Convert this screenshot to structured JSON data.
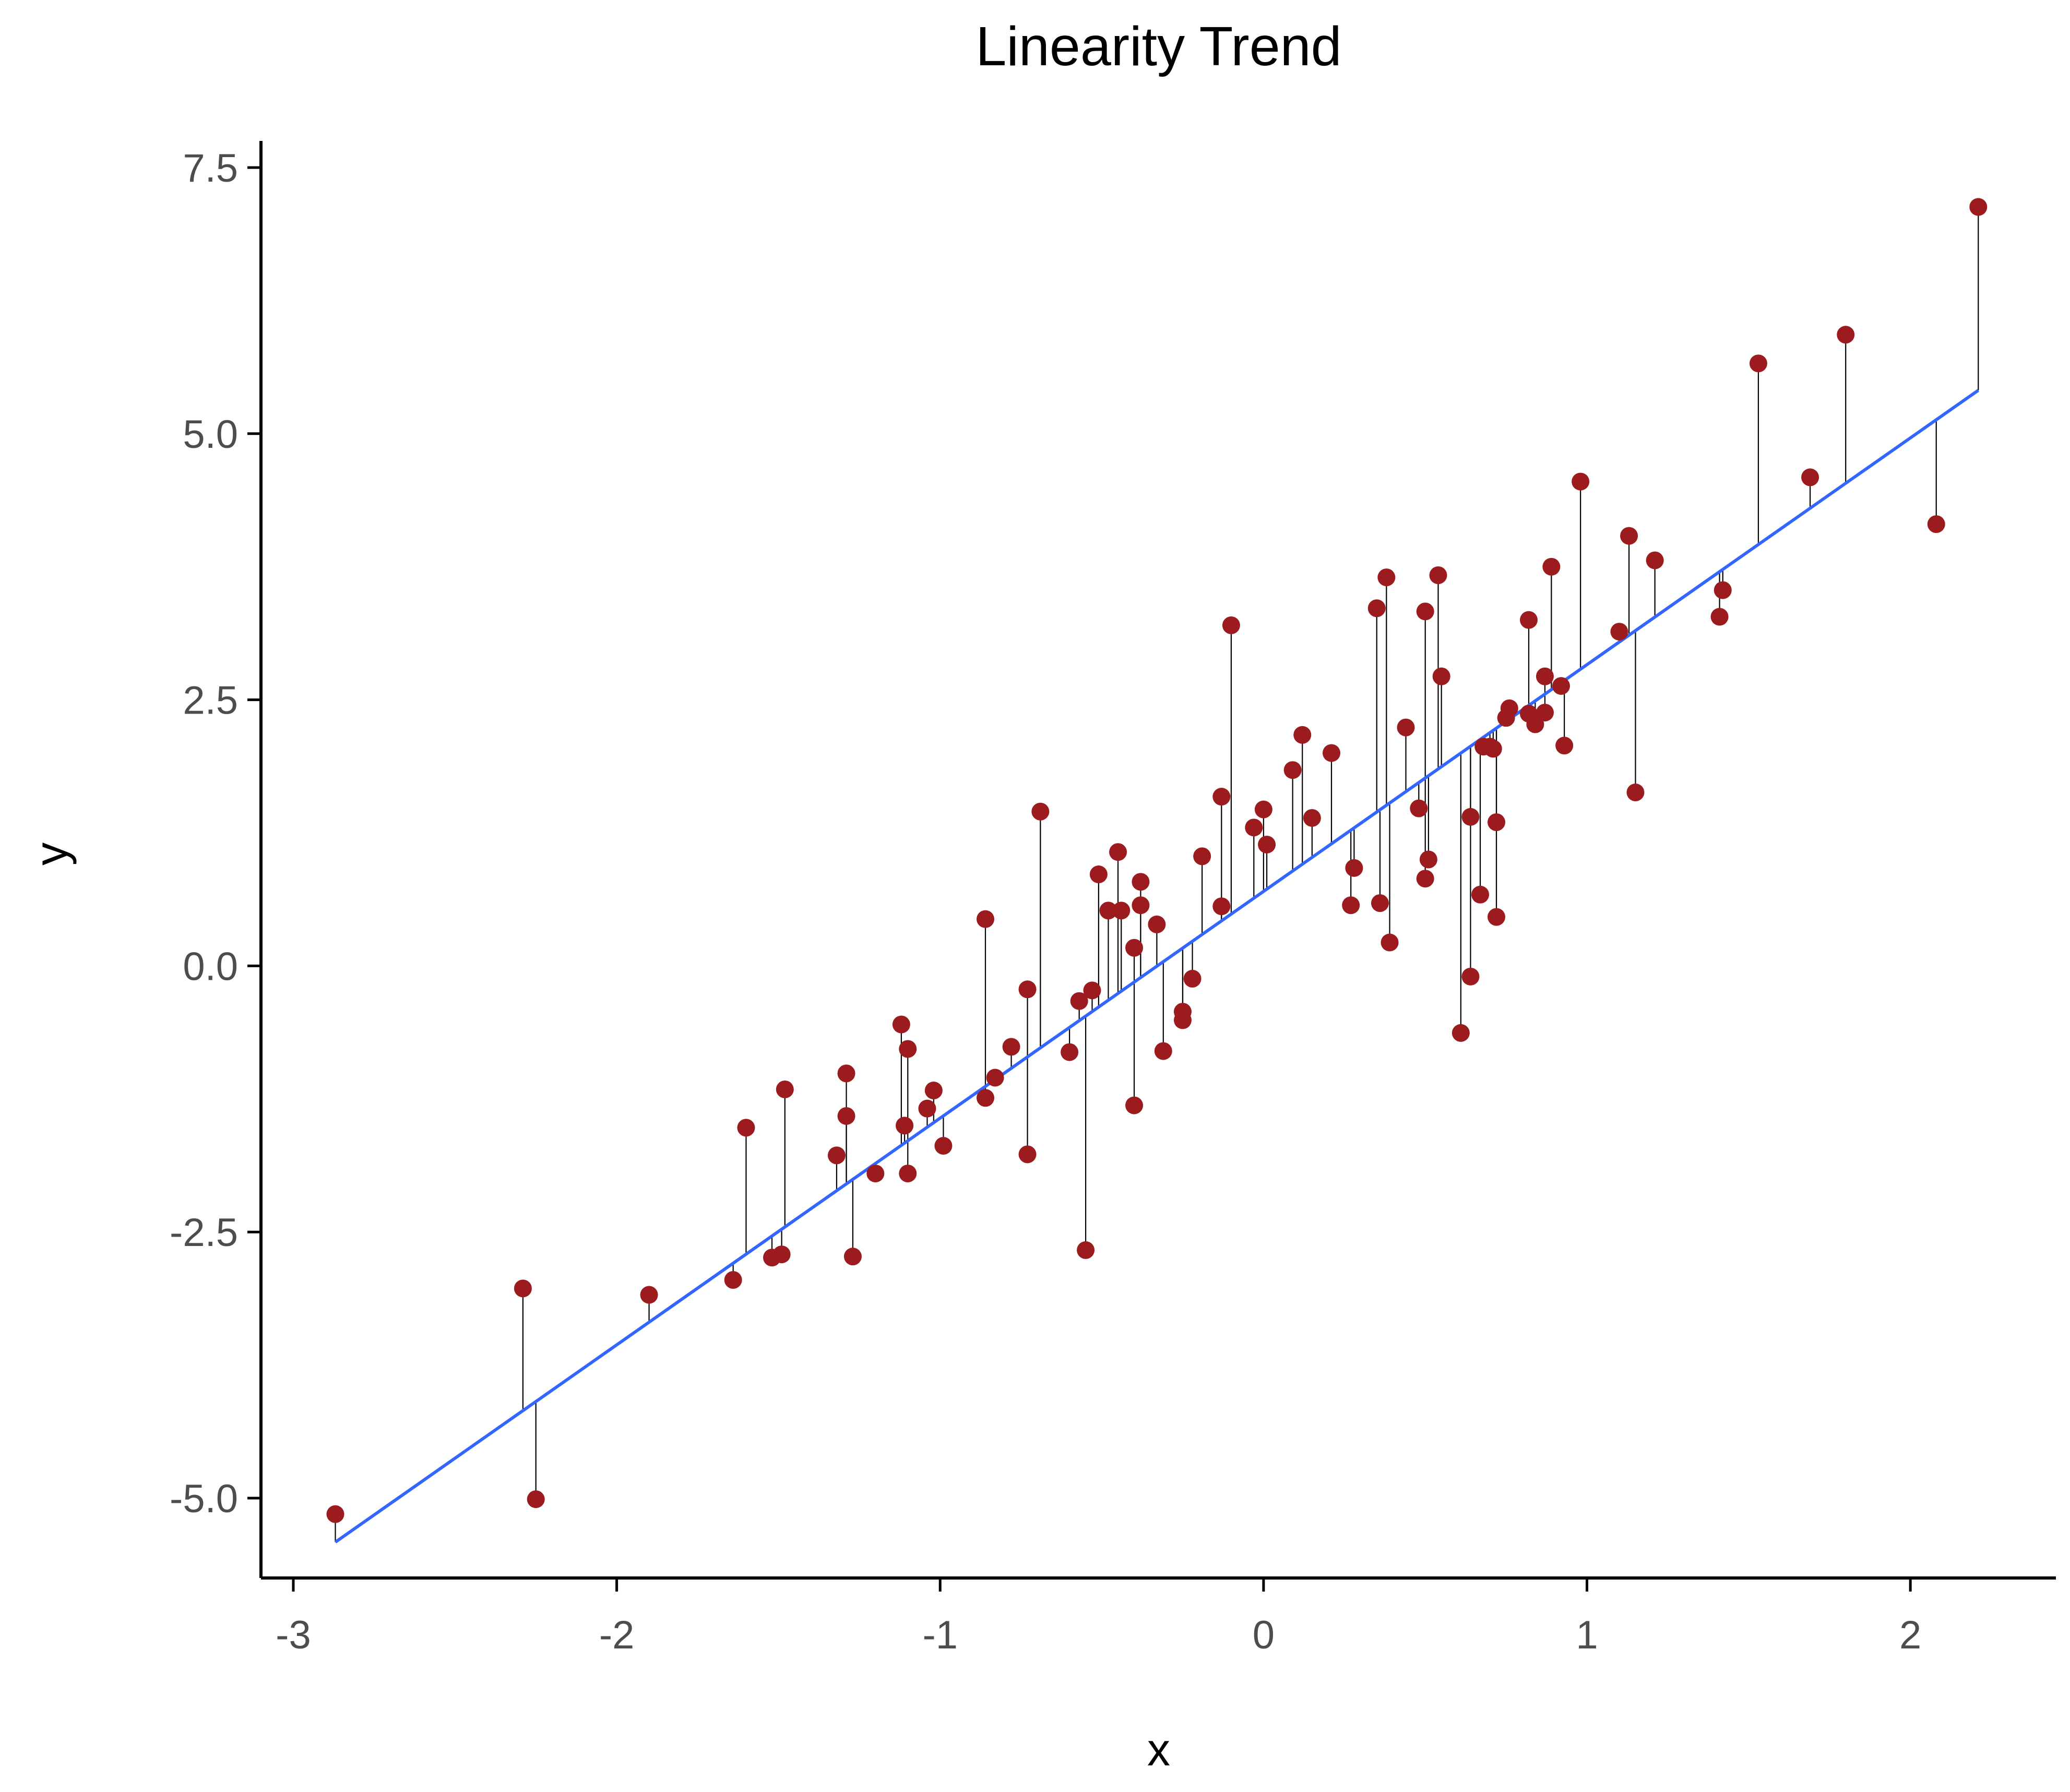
{
  "chart_data": {
    "type": "scatter",
    "title": "Linearity Trend",
    "xlabel": "x",
    "ylabel": "y",
    "xlim": [
      -3.1,
      2.45
    ],
    "ylim": [
      -5.75,
      7.75
    ],
    "xticks": [
      -3,
      -2,
      -1,
      0,
      1,
      2
    ],
    "xtick_labels": [
      "-3",
      "-2",
      "-1",
      "0",
      "1",
      "2"
    ],
    "yticks": [
      -5.0,
      -2.5,
      0.0,
      2.5,
      5.0,
      7.5
    ],
    "ytick_labels": [
      "-5.0",
      "-2.5",
      "0.0",
      "2.5",
      "5.0",
      "7.5"
    ],
    "grid": false,
    "legend": "none",
    "fit_line": {
      "intercept": 0.7,
      "slope": 2.13,
      "x_range": [
        -2.87,
        2.21
      ],
      "color": "#3366ff"
    },
    "point_color": "#9b1b1e",
    "residual_color": "#000000",
    "points": [
      {
        "x": -2.87,
        "y": -5.15
      },
      {
        "x": -2.29,
        "y": -3.03
      },
      {
        "x": -2.25,
        "y": -5.01
      },
      {
        "x": -1.9,
        "y": -3.09
      },
      {
        "x": -1.64,
        "y": -2.95
      },
      {
        "x": -1.6,
        "y": -1.52
      },
      {
        "x": -1.52,
        "y": -2.74
      },
      {
        "x": -1.49,
        "y": -2.71
      },
      {
        "x": -1.48,
        "y": -1.16
      },
      {
        "x": -1.32,
        "y": -1.78
      },
      {
        "x": -1.29,
        "y": -1.01
      },
      {
        "x": -1.29,
        "y": -1.41
      },
      {
        "x": -1.27,
        "y": -2.73
      },
      {
        "x": -1.2,
        "y": -1.95
      },
      {
        "x": -1.12,
        "y": -0.55
      },
      {
        "x": -1.11,
        "y": -1.5
      },
      {
        "x": -1.1,
        "y": -0.78
      },
      {
        "x": -1.1,
        "y": -1.95
      },
      {
        "x": -1.04,
        "y": -1.34
      },
      {
        "x": -1.02,
        "y": -1.17
      },
      {
        "x": -0.99,
        "y": -1.69
      },
      {
        "x": -0.86,
        "y": 0.44
      },
      {
        "x": -0.86,
        "y": -1.24
      },
      {
        "x": -0.83,
        "y": -1.05
      },
      {
        "x": -0.78,
        "y": -0.76
      },
      {
        "x": -0.73,
        "y": -0.22
      },
      {
        "x": -0.73,
        "y": -1.77
      },
      {
        "x": -0.69,
        "y": 1.45
      },
      {
        "x": -0.6,
        "y": -0.81
      },
      {
        "x": -0.57,
        "y": -0.33
      },
      {
        "x": -0.55,
        "y": -2.67
      },
      {
        "x": -0.53,
        "y": -0.23
      },
      {
        "x": -0.51,
        "y": 0.86
      },
      {
        "x": -0.48,
        "y": 0.52
      },
      {
        "x": -0.45,
        "y": 1.07
      },
      {
        "x": -0.44,
        "y": 0.52
      },
      {
        "x": -0.4,
        "y": 0.17
      },
      {
        "x": -0.4,
        "y": -1.31
      },
      {
        "x": -0.38,
        "y": 0.57
      },
      {
        "x": -0.38,
        "y": 0.79
      },
      {
        "x": -0.33,
        "y": 0.39
      },
      {
        "x": -0.31,
        "y": -0.8
      },
      {
        "x": -0.25,
        "y": -0.43
      },
      {
        "x": -0.25,
        "y": -0.51
      },
      {
        "x": -0.22,
        "y": -0.12
      },
      {
        "x": -0.19,
        "y": 1.03
      },
      {
        "x": -0.13,
        "y": 1.59
      },
      {
        "x": -0.13,
        "y": 0.56
      },
      {
        "x": -0.1,
        "y": 3.2
      },
      {
        "x": -0.03,
        "y": 1.3
      },
      {
        "x": 0.0,
        "y": 1.47
      },
      {
        "x": 0.01,
        "y": 1.14
      },
      {
        "x": 0.09,
        "y": 1.84
      },
      {
        "x": 0.12,
        "y": 2.17
      },
      {
        "x": 0.15,
        "y": 1.39
      },
      {
        "x": 0.21,
        "y": 2.0
      },
      {
        "x": 0.27,
        "y": 0.57
      },
      {
        "x": 0.28,
        "y": 0.92
      },
      {
        "x": 0.35,
        "y": 3.36
      },
      {
        "x": 0.36,
        "y": 0.59
      },
      {
        "x": 0.38,
        "y": 3.65
      },
      {
        "x": 0.39,
        "y": 0.22
      },
      {
        "x": 0.44,
        "y": 2.24
      },
      {
        "x": 0.48,
        "y": 1.48
      },
      {
        "x": 0.5,
        "y": 3.33
      },
      {
        "x": 0.5,
        "y": 0.82
      },
      {
        "x": 0.51,
        "y": 1.0
      },
      {
        "x": 0.54,
        "y": 3.67
      },
      {
        "x": 0.55,
        "y": 2.72
      },
      {
        "x": 0.61,
        "y": -0.63
      },
      {
        "x": 0.64,
        "y": 1.4
      },
      {
        "x": 0.64,
        "y": -0.1
      },
      {
        "x": 0.67,
        "y": 0.67
      },
      {
        "x": 0.68,
        "y": 2.06
      },
      {
        "x": 0.7,
        "y": 2.06
      },
      {
        "x": 0.71,
        "y": 2.04
      },
      {
        "x": 0.72,
        "y": 1.35
      },
      {
        "x": 0.72,
        "y": 0.46
      },
      {
        "x": 0.75,
        "y": 2.33
      },
      {
        "x": 0.76,
        "y": 2.42
      },
      {
        "x": 0.82,
        "y": 3.25
      },
      {
        "x": 0.82,
        "y": 2.37
      },
      {
        "x": 0.84,
        "y": 2.27
      },
      {
        "x": 0.87,
        "y": 2.38
      },
      {
        "x": 0.87,
        "y": 2.72
      },
      {
        "x": 0.89,
        "y": 3.75
      },
      {
        "x": 0.92,
        "y": 2.63
      },
      {
        "x": 0.93,
        "y": 2.07
      },
      {
        "x": 0.98,
        "y": 4.55
      },
      {
        "x": 1.1,
        "y": 3.14
      },
      {
        "x": 1.13,
        "y": 4.04
      },
      {
        "x": 1.15,
        "y": 1.63
      },
      {
        "x": 1.21,
        "y": 3.81
      },
      {
        "x": 1.41,
        "y": 3.28
      },
      {
        "x": 1.42,
        "y": 3.53
      },
      {
        "x": 1.53,
        "y": 5.66
      },
      {
        "x": 1.69,
        "y": 4.59
      },
      {
        "x": 1.8,
        "y": 5.93
      },
      {
        "x": 2.08,
        "y": 4.15
      },
      {
        "x": 2.21,
        "y": 7.13
      }
    ]
  }
}
